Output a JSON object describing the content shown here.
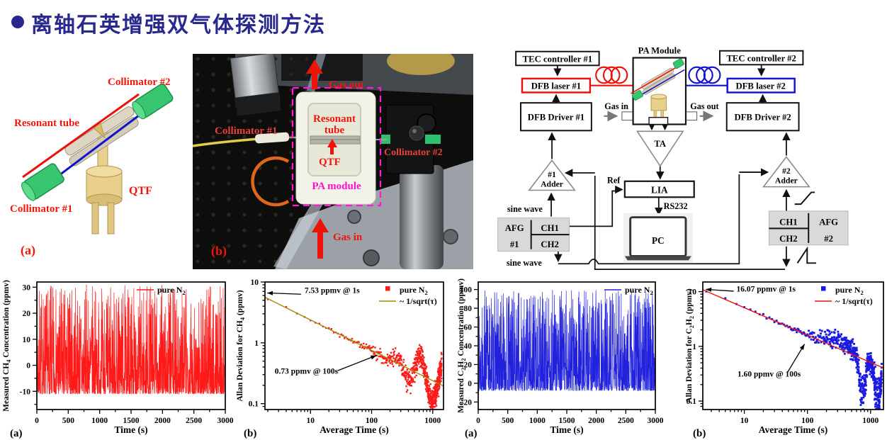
{
  "title": {
    "text": "离轴石英增强双气体探测方法"
  },
  "colors": {
    "title_navy": "#28288e",
    "accent_red": "#ee1208",
    "laser1_red": "#e8130c",
    "laser2_blue": "#1212cf",
    "magenta_dash": "#ff18e0",
    "pa_module_magenta": "#ff10d0",
    "afg_gray": "#d9d9d9",
    "fit_olive": "#9d8a00"
  },
  "panel_a": {
    "tag": "(a)",
    "labels": {
      "collimator2": "Collimator #2",
      "resonant_tube": "Resonant tube",
      "qtf": "QTF",
      "collimator1": "Collimator #1"
    }
  },
  "panel_b": {
    "tag": "(b)",
    "labels": {
      "gas_out": "Gas out",
      "collimator1": "Collimator #1",
      "resonant_line1": "Resonant",
      "resonant_line2": "tube",
      "qtf": "QTF",
      "pa_module": "PA module",
      "collimator2": "Collimator #2",
      "gas_in": "Gas in"
    }
  },
  "diagram": {
    "tec1": "TEC controller #1",
    "tec2": "TEC controller #2",
    "pa_module": "PA Module",
    "dfb_laser1": "DFB laser #1",
    "dfb_laser2": "DFB laser #2",
    "dfb_driver1": "DFB Driver #1",
    "dfb_driver2": "DFB Driver #2",
    "gas_in": "Gas in",
    "gas_out": "Gas out",
    "ta": "TA",
    "adder1_line1": "#1",
    "adder1_line2": "Adder",
    "adder2_line1": "#2",
    "adder2_line2": "Adder",
    "ref": "Ref",
    "lia": "LIA",
    "rs232": "RS232",
    "pc": "PC",
    "sine_wave_top": "sine wave",
    "sine_wave_bottom": "sine wave",
    "afg1_name": "AFG",
    "afg1_num": "#1",
    "afg1_ch1": "CH1",
    "afg1_ch2": "CH2",
    "afg2_name": "AFG",
    "afg2_num": "#2",
    "afg2_ch1": "CH1",
    "afg2_ch2": "CH2"
  },
  "chart_data": [
    {
      "id": "ch4_timeseries",
      "type": "line",
      "panel_tag": "(a)",
      "xlabel": "Time (s)",
      "ylabel_segments": [
        {
          "t": "Measured CH"
        },
        {
          "t": "4",
          "sub": true
        },
        {
          "t": " Concentration (ppmv)"
        }
      ],
      "legend": [
        {
          "marker": "line",
          "color": "#ff1a1a",
          "label_segments": [
            {
              "t": "pure N"
            },
            {
              "t": "2",
              "sub": true
            }
          ]
        }
      ],
      "xlim": [
        0,
        3000
      ],
      "ylim": [
        -17,
        32
      ],
      "xticks": [
        0,
        500,
        1000,
        1500,
        2000,
        2500,
        3000
      ],
      "yticks": [
        -10,
        0,
        10,
        20,
        30
      ],
      "xminor": 250,
      "yminor": 5,
      "series_color": "#ff1a1a",
      "signal": {
        "seed": 7,
        "points": 1400,
        "floor": -11,
        "span": 42,
        "bias": 2.6,
        "description": "random noise band, dense -11 to +15 ppmv, spikes to +30 ppmv"
      }
    },
    {
      "id": "ch4_allan",
      "type": "scatter_loglog",
      "panel_tag": "(b)",
      "xlabel": "Average Time (s)",
      "ylabel_segments": [
        {
          "t": "Allan Deviation for CH"
        },
        {
          "t": "4",
          "sub": true
        },
        {
          "t": " (ppmv)"
        }
      ],
      "legend": [
        {
          "marker": "square",
          "color": "#ff1a1a",
          "label_segments": [
            {
              "t": "pure N"
            },
            {
              "t": "2",
              "sub": true
            }
          ]
        },
        {
          "marker": "line",
          "color": "#9d8a00",
          "label_segments": [
            {
              "t": "~ 1/sqrt(τ)"
            }
          ]
        }
      ],
      "xlim": [
        1.8,
        1500
      ],
      "ylim": [
        0.08,
        10
      ],
      "xticks": [
        10,
        100,
        1000
      ],
      "yticks": [
        0.1,
        1,
        10
      ],
      "marker_color": "#ff1a1a",
      "fit": {
        "coefficient": 7.53,
        "color": "#9d8a00"
      },
      "key_points": [
        {
          "tau_s": 1,
          "sigma_ppmv": 7.53
        },
        {
          "tau_s": 100,
          "sigma_ppmv": 0.73
        }
      ],
      "allan": {
        "seed": 21,
        "A": 7.53,
        "tau0": 2,
        "tau_max": 1400,
        "wobble": {
          "amp": 0.8,
          "freq": 16,
          "phase": 2.3,
          "start": 2.1
        }
      },
      "annotations": [
        {
          "text": "7.53 ppmv @ 1s",
          "tx": 8,
          "ty": 6.6,
          "sx": 7.0,
          "sy": 6.3,
          "ax": 1.95,
          "ay": 6.6
        },
        {
          "text": "0.73 ppmv @ 100s",
          "tx": 2.6,
          "ty": 0.31,
          "sx": 28,
          "sy": 0.35,
          "ax": 120,
          "ay": 0.62
        }
      ]
    },
    {
      "id": "c2h2_timeseries",
      "type": "line",
      "panel_tag": "(a)",
      "xlabel": "Time (s)",
      "ylabel_segments": [
        {
          "t": "Measured C"
        },
        {
          "t": "2",
          "sub": true
        },
        {
          "t": "H"
        },
        {
          "t": "2",
          "sub": true
        },
        {
          "t": " Concentration (ppmv)"
        }
      ],
      "legend": [
        {
          "marker": "line",
          "color": "#2222dd",
          "label_segments": [
            {
              "t": "pure N"
            },
            {
              "t": "2",
              "sub": true
            }
          ]
        }
      ],
      "xlim": [
        0,
        3000
      ],
      "ylim": [
        -28,
        108
      ],
      "xticks": [
        0,
        500,
        1000,
        1500,
        2000,
        2500,
        3000
      ],
      "yticks": [
        -20,
        0,
        20,
        40,
        60,
        80,
        100
      ],
      "xminor": 250,
      "yminor": 10,
      "series_color": "#2222dd",
      "signal": {
        "seed": 13,
        "points": 1400,
        "floor": -8,
        "span": 108,
        "bias": 2.2,
        "description": "random noise band, dense -8 to +40 ppmv, spikes to +97 ppmv"
      }
    },
    {
      "id": "c2h2_allan",
      "type": "scatter_loglog",
      "panel_tag": "(b)",
      "xlabel": "Average Time (s)",
      "ylabel_segments": [
        {
          "t": "Allan Deviation for C"
        },
        {
          "t": "2",
          "sub": true
        },
        {
          "t": "H"
        },
        {
          "t": "2",
          "sub": true
        },
        {
          "t": " (ppmv)"
        }
      ],
      "legend": [
        {
          "marker": "square",
          "color": "#1a1ae0",
          "label_segments": [
            {
              "t": "pure N"
            },
            {
              "t": "2",
              "sub": true
            }
          ]
        },
        {
          "marker": "line",
          "color": "#ee1111",
          "label_segments": [
            {
              "t": "~ 1/sqrt(τ)"
            }
          ]
        }
      ],
      "xlim": [
        2.2,
        1600
      ],
      "ylim": [
        0.07,
        15
      ],
      "xticks": [
        10,
        100,
        1000
      ],
      "yticks": [
        0.1,
        1,
        10
      ],
      "marker_color": "#1a1ae0",
      "fit": {
        "coefficient": 16.07,
        "color": "#ee1111"
      },
      "key_points": [
        {
          "tau_s": 1,
          "sigma_ppmv": 16.07
        },
        {
          "tau_s": 100,
          "sigma_ppmv": 1.6
        }
      ],
      "allan": {
        "seed": 33,
        "A": 16.07,
        "tau0": 2.5,
        "tau_max": 1500,
        "bump": {
          "center_log": 2.5,
          "width": 0.24,
          "height": 0.4
        },
        "dips": [
          {
            "center_log": 2.87,
            "width": 0.055,
            "depth": 2.6
          },
          {
            "center_log": 3.11,
            "width": 0.05,
            "depth": 2.7
          }
        ]
      },
      "annotations": [
        {
          "text": "16.07 ppmv @ 1s",
          "tx": 7.5,
          "ty": 10.0,
          "sx": 6.8,
          "sy": 10.2,
          "ax": 2.45,
          "ay": 11.0
        },
        {
          "text": "1.60 ppmv @ 100s",
          "tx": 7.8,
          "ty": 0.28,
          "sx": 48,
          "sy": 0.33,
          "ax": 90,
          "ay": 1.1
        }
      ]
    }
  ]
}
